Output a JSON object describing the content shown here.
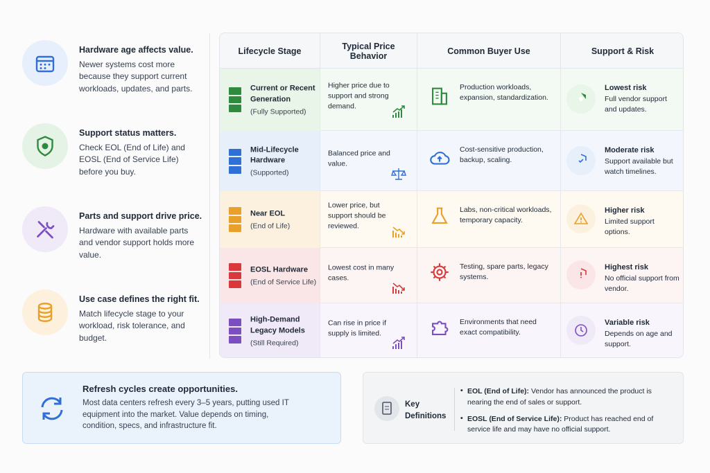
{
  "sidebar": [
    {
      "title": "Hardware age affects value.",
      "text": "Newer systems cost more because they support current workloads, updates, and parts."
    },
    {
      "title": "Support status matters.",
      "text": "Check EOL (End of Life) and EOSL (End of Service Life) before you buy."
    },
    {
      "title": "Parts and support drive price.",
      "text": "Hardware with available parts and vendor support holds more value."
    },
    {
      "title": "Use case defines the right fit.",
      "text": "Match lifecycle stage to your workload, risk tolerance, and budget."
    }
  ],
  "table": {
    "headers": [
      "Lifecycle Stage",
      "Typical Price Behavior",
      "Common Buyer Use",
      "Support & Risk"
    ],
    "rows": [
      {
        "stage": "Current or Recent Generation",
        "status": "(Fully Supported)",
        "price": "Higher price due to support and strong demand.",
        "use": "Production workloads, expansion, standardization.",
        "risk": "Lowest risk",
        "risk_text": "Full vendor support and updates."
      },
      {
        "stage": "Mid-Lifecycle Hardware",
        "status": "(Supported)",
        "price": "Balanced price and value.",
        "use": "Cost-sensitive production, backup, scaling.",
        "risk": "Moderate risk",
        "risk_text": "Support available but watch timelines."
      },
      {
        "stage": "Near EOL",
        "status": "(End of Life)",
        "price": "Lower price, but support should be reviewed.",
        "use": "Labs, non-critical workloads, temporary capacity.",
        "risk": "Higher risk",
        "risk_text": "Limited support options."
      },
      {
        "stage": "EOSL Hardware",
        "status": "(End of Service Life)",
        "price": "Lowest cost in many cases.",
        "use": "Testing, spare parts, legacy systems.",
        "risk": "Highest risk",
        "risk_text": "No official support from vendor."
      },
      {
        "stage": "High-Demand Legacy Models",
        "status": "(Still Required)",
        "price": "Can rise in price if supply is limited.",
        "use": "Environments that need exact compatibility.",
        "risk": "Variable risk",
        "risk_text": "Depends on age and support."
      }
    ]
  },
  "refresh": {
    "title": "Refresh cycles create opportunities.",
    "text": "Most data centers refresh every 3–5 years, putting used IT equipment into the market. Value depends on timing, condition, specs, and infrastructure fit."
  },
  "definitions": {
    "title": "Key Definitions",
    "items": [
      {
        "term": "EOL (End of Life):",
        "text": "Vendor has announced the product is nearing the end of sales or support."
      },
      {
        "term": "EOSL (End of Service Life):",
        "text": "Product has reached end of service life and may have no official support."
      }
    ]
  }
}
